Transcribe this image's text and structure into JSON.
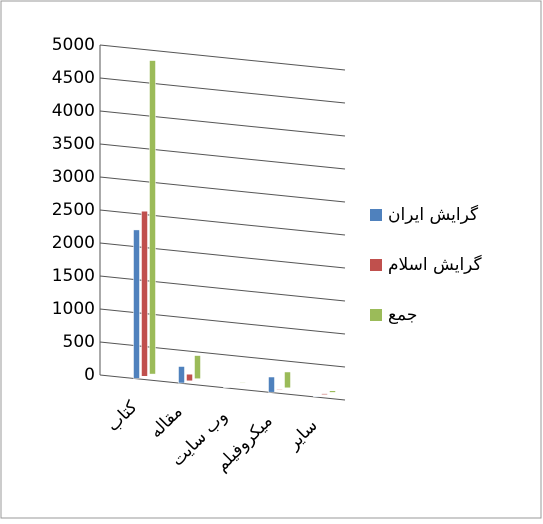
{
  "chart_data": {
    "type": "bar",
    "categories": [
      "کتاب",
      "مقاله",
      "وب سایت",
      "میکروفیلم",
      "سایر"
    ],
    "series": [
      {
        "name": "گرایش ایران",
        "color": "#4f81bd",
        "values": [
          2250,
          250,
          5,
          230,
          10
        ]
      },
      {
        "name": "گرایش اسلام",
        "color": "#c0504d",
        "values": [
          2500,
          100,
          5,
          10,
          15
        ]
      },
      {
        "name": "جمع",
        "color": "#9bbb59",
        "values": [
          4750,
          350,
          10,
          240,
          25
        ]
      }
    ],
    "ylim": [
      0,
      5000
    ],
    "yticks": [
      0,
      500,
      1000,
      1500,
      2000,
      2500,
      3000,
      3500,
      4000,
      4500,
      5000
    ],
    "grid": true,
    "legend": "right"
  }
}
